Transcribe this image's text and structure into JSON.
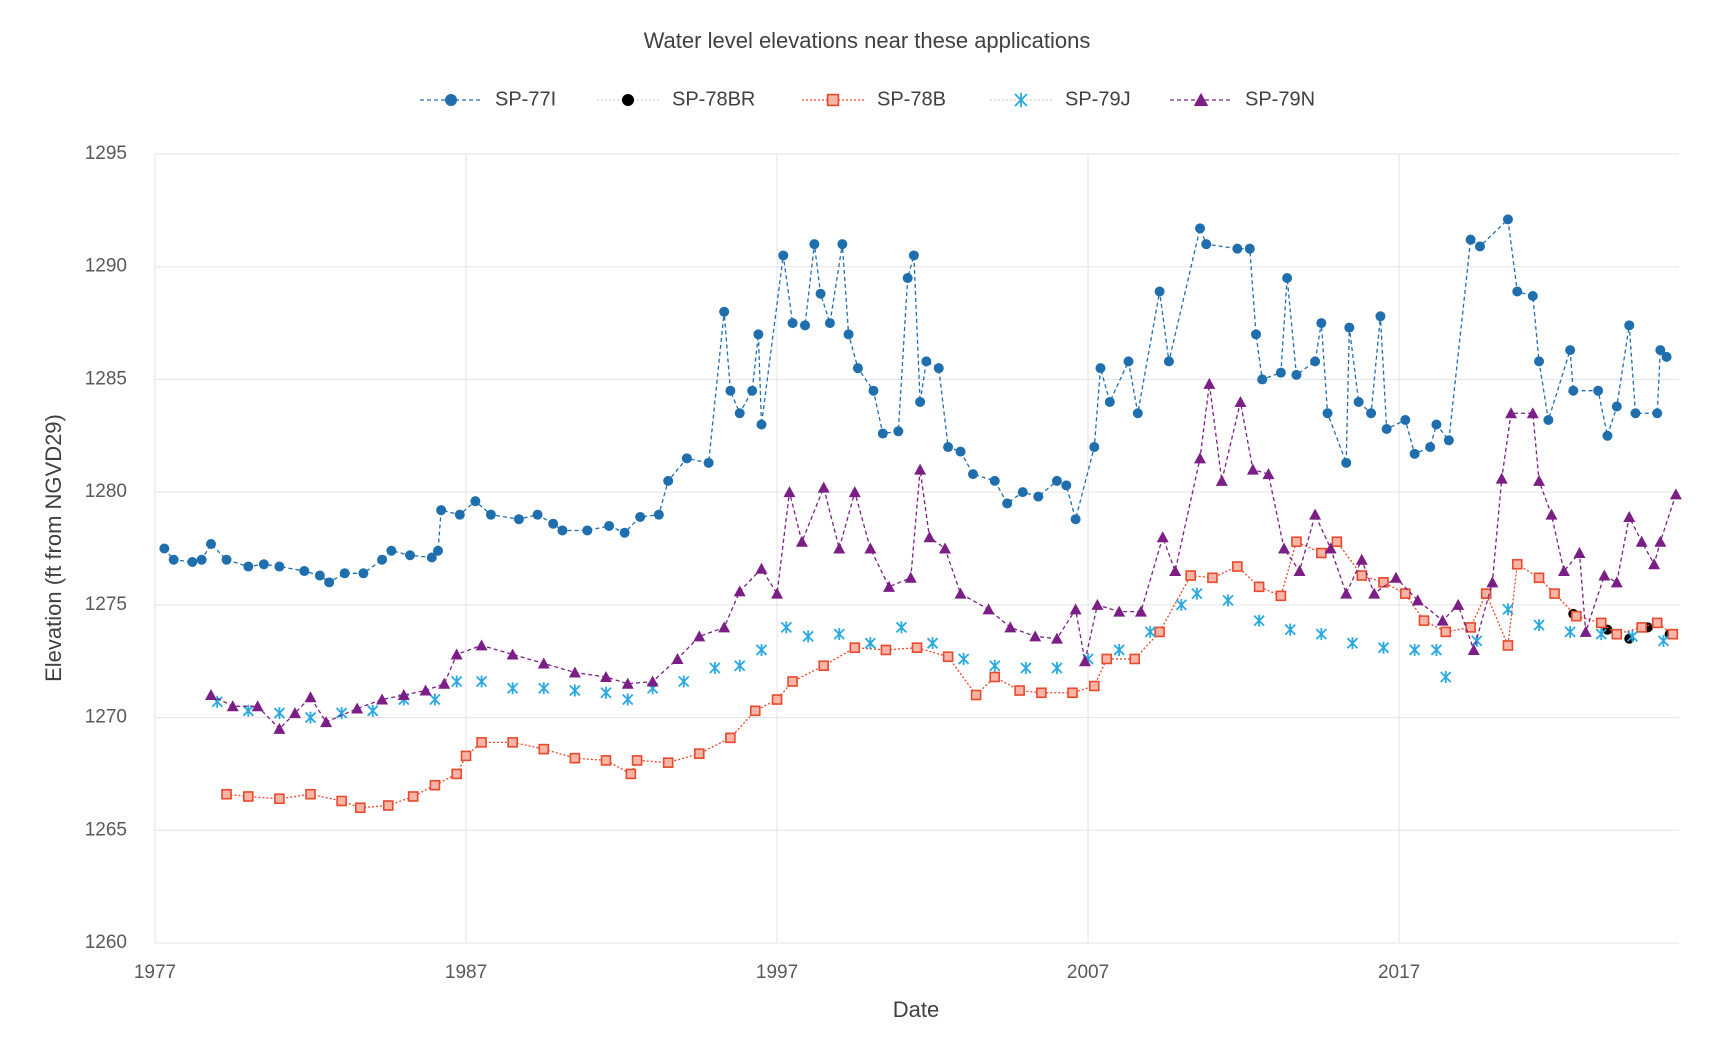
{
  "chart_data": {
    "type": "line",
    "title": "Water level elevations near these applications",
    "xlabel": "Date",
    "ylabel": "Elevation (ft from NGVD29)",
    "xlim": [
      1977,
      2026
    ],
    "xticks": [
      1977,
      1987,
      1997,
      2007,
      2017
    ],
    "ylim": [
      1260,
      1295
    ],
    "yticks": [
      1260,
      1265,
      1270,
      1275,
      1280,
      1285,
      1290,
      1295
    ],
    "grid": true,
    "legend": "top",
    "series": [
      {
        "name": "SP-77I",
        "color": "#1f6fae",
        "marker": "circle",
        "line": "dashed",
        "x": [
          1977.3,
          1977.6,
          1978.2,
          1978.5,
          1978.8,
          1979.3,
          1980.0,
          1980.5,
          1981.0,
          1981.8,
          1982.3,
          1982.6,
          1983.1,
          1983.7,
          1984.3,
          1984.6,
          1985.2,
          1985.9,
          1986.1,
          1986.2,
          1986.8,
          1987.3,
          1987.8,
          1988.7,
          1989.3,
          1989.8,
          1990.1,
          1990.9,
          1991.6,
          1992.1,
          1992.6,
          1993.2,
          1993.5,
          1994.1,
          1994.8,
          1995.3,
          1995.5,
          1995.8,
          1996.2,
          1996.4,
          1996.5,
          1997.2,
          1997.5,
          1997.9,
          1998.2,
          1998.4,
          1998.7,
          1999.1,
          1999.3,
          1999.6,
          2000.1,
          2000.4,
          2000.9,
          2001.2,
          2001.4,
          2001.6,
          2001.8,
          2002.2,
          2002.5,
          2002.9,
          2003.3,
          2004.0,
          2004.4,
          2004.9,
          2005.4,
          2006.0,
          2006.3,
          2006.6,
          2007.2,
          2007.4,
          2007.7,
          2008.3,
          2008.6,
          2009.3,
          2009.6,
          2010.6,
          2010.8,
          2011.8,
          2012.2,
          2012.4,
          2012.6,
          2013.2,
          2013.4,
          2013.7,
          2014.3,
          2014.5,
          2014.7,
          2015.3,
          2015.4,
          2015.7,
          2016.1,
          2016.4,
          2016.6,
          2017.2,
          2017.5,
          2018.0,
          2018.2,
          2018.6,
          2019.3,
          2019.6,
          2020.5,
          2020.8,
          2021.3,
          2021.5,
          2021.8,
          2022.5,
          2022.6,
          2023.4,
          2023.7,
          2024.0,
          2024.4,
          2024.6,
          2025.3,
          2025.4,
          2025.6
        ],
        "values": [
          1277.5,
          1277.0,
          1276.9,
          1277.0,
          1277.7,
          1277.0,
          1276.7,
          1276.8,
          1276.7,
          1276.5,
          1276.3,
          1276.0,
          1276.4,
          1276.4,
          1277.0,
          1277.4,
          1277.2,
          1277.1,
          1277.4,
          1279.2,
          1279.0,
          1279.6,
          1279.0,
          1278.8,
          1279.0,
          1278.6,
          1278.3,
          1278.3,
          1278.5,
          1278.2,
          1278.9,
          1279.0,
          1280.5,
          1281.5,
          1281.3,
          1288.0,
          1284.5,
          1283.5,
          1284.5,
          1287.0,
          1283.0,
          1290.5,
          1287.5,
          1287.4,
          1291.0,
          1288.8,
          1287.5,
          1291.0,
          1287.0,
          1285.5,
          1284.5,
          1282.6,
          1282.7,
          1289.5,
          1290.5,
          1284.0,
          1285.8,
          1285.5,
          1282.0,
          1281.8,
          1280.8,
          1280.5,
          1279.5,
          1280.0,
          1279.8,
          1280.5,
          1280.3,
          1278.8,
          1282.0,
          1285.5,
          1284.0,
          1285.8,
          1283.5,
          1288.9,
          1285.8,
          1291.7,
          1291.0,
          1290.8,
          1290.8,
          1287.0,
          1285.0,
          1285.3,
          1289.5,
          1285.2,
          1285.8,
          1287.5,
          1283.5,
          1281.3,
          1287.3,
          1284.0,
          1283.5,
          1287.8,
          1282.8,
          1283.2,
          1281.7,
          1282.0,
          1283.0,
          1282.3,
          1291.2,
          1290.9,
          1292.1,
          1288.9,
          1288.7,
          1285.8,
          1283.2,
          1286.3,
          1284.5,
          1284.5,
          1282.5,
          1283.8,
          1287.4,
          1283.5,
          1283.5,
          1286.3,
          1286.0
        ]
      },
      {
        "name": "SP-78BR",
        "color": "#000000",
        "marker": "circle",
        "line": "none",
        "x": [
          2022.6,
          2023.7,
          2024.4,
          2025.0,
          2025.7
        ],
        "values": [
          1274.6,
          1273.9,
          1273.5,
          1274.0,
          1273.7
        ]
      },
      {
        "name": "SP-78B",
        "color": "#e8482c",
        "marker": "square",
        "line": "dotted",
        "x": [
          1979.3,
          1980.0,
          1981.0,
          1982.0,
          1983.0,
          1983.6,
          1984.5,
          1985.3,
          1986.0,
          1986.7,
          1987.0,
          1987.5,
          1988.5,
          1989.5,
          1990.5,
          1991.5,
          1992.3,
          1992.5,
          1993.5,
          1994.5,
          1995.5,
          1996.3,
          1997.0,
          1997.5,
          1998.5,
          1999.5,
          2000.5,
          2001.5,
          2002.5,
          2003.4,
          2004.0,
          2004.8,
          2005.5,
          2006.5,
          2007.2,
          2007.6,
          2008.5,
          2009.3,
          2010.3,
          2011.0,
          2011.8,
          2012.5,
          2013.2,
          2013.7,
          2014.5,
          2015.0,
          2015.8,
          2016.5,
          2017.2,
          2017.8,
          2018.5,
          2019.3,
          2019.8,
          2020.5,
          2020.8,
          2021.5,
          2022.0,
          2022.7,
          2023.5,
          2024.0,
          2024.8,
          2025.3,
          2025.8
        ],
        "values": [
          1266.6,
          1266.5,
          1266.4,
          1266.6,
          1266.3,
          1266.0,
          1266.1,
          1266.5,
          1267.0,
          1267.5,
          1268.3,
          1268.9,
          1268.9,
          1268.6,
          1268.2,
          1268.1,
          1267.5,
          1268.1,
          1268.0,
          1268.4,
          1269.1,
          1270.3,
          1270.8,
          1271.6,
          1272.3,
          1273.1,
          1273.0,
          1273.1,
          1272.7,
          1271.0,
          1271.8,
          1271.2,
          1271.1,
          1271.1,
          1271.4,
          1272.6,
          1272.6,
          1273.8,
          1276.3,
          1276.2,
          1276.7,
          1275.8,
          1275.4,
          1277.8,
          1277.3,
          1277.8,
          1276.3,
          1276.0,
          1275.5,
          1274.3,
          1273.8,
          1274.0,
          1275.5,
          1273.2,
          1276.8,
          1276.2,
          1275.5,
          1274.5,
          1274.2,
          1273.7,
          1274.0,
          1274.2,
          1273.7
        ]
      },
      {
        "name": "SP-79J",
        "color": "#29a9e1",
        "marker": "x",
        "line": "none",
        "x": [
          1979.0,
          1980.0,
          1981.0,
          1982.0,
          1983.0,
          1984.0,
          1985.0,
          1986.0,
          1986.7,
          1987.5,
          1988.5,
          1989.5,
          1990.5,
          1991.5,
          1992.2,
          1993.0,
          1994.0,
          1995.0,
          1995.8,
          1996.5,
          1997.3,
          1998.0,
          1999.0,
          2000.0,
          2001.0,
          2002.0,
          2003.0,
          2004.0,
          2005.0,
          2006.0,
          2007.0,
          2008.0,
          2009.0,
          2010.0,
          2010.5,
          2011.5,
          2012.5,
          2013.5,
          2014.5,
          2015.5,
          2016.5,
          2017.5,
          2018.2,
          2018.5,
          2019.5,
          2020.5,
          2021.5,
          2022.5,
          2023.5,
          2024.5,
          2025.5
        ],
        "values": [
          1270.7,
          1270.3,
          1270.2,
          1270.0,
          1270.2,
          1270.3,
          1270.8,
          1270.8,
          1271.6,
          1271.6,
          1271.3,
          1271.3,
          1271.2,
          1271.1,
          1270.8,
          1271.3,
          1271.6,
          1272.2,
          1272.3,
          1273.0,
          1274.0,
          1273.6,
          1273.7,
          1273.3,
          1274.0,
          1273.3,
          1272.6,
          1272.3,
          1272.2,
          1272.2,
          1272.6,
          1273.0,
          1273.8,
          1275.0,
          1275.5,
          1275.2,
          1274.3,
          1273.9,
          1273.7,
          1273.3,
          1273.1,
          1273.0,
          1273.0,
          1271.8,
          1273.4,
          1274.8,
          1274.1,
          1273.8,
          1273.7,
          1273.6,
          1273.4
        ]
      },
      {
        "name": "SP-79N",
        "color": "#7b1f86",
        "marker": "triangle",
        "line": "dashed",
        "x": [
          1978.8,
          1979.5,
          1980.3,
          1981.0,
          1981.5,
          1982.0,
          1982.5,
          1983.5,
          1984.3,
          1985.0,
          1985.7,
          1986.3,
          1986.7,
          1987.5,
          1988.5,
          1989.5,
          1990.5,
          1991.5,
          1992.2,
          1993.0,
          1993.8,
          1994.5,
          1995.3,
          1995.8,
          1996.5,
          1997.0,
          1997.4,
          1997.8,
          1998.5,
          1999.0,
          1999.5,
          2000.0,
          2000.6,
          2001.3,
          2001.6,
          2001.9,
          2002.4,
          2002.9,
          2003.8,
          2004.5,
          2005.3,
          2006.0,
          2006.6,
          2006.9,
          2007.3,
          2008.0,
          2008.7,
          2009.4,
          2009.8,
          2010.6,
          2010.9,
          2011.3,
          2011.9,
          2012.3,
          2012.8,
          2013.3,
          2013.8,
          2014.3,
          2014.8,
          2015.3,
          2015.8,
          2016.2,
          2016.9,
          2017.6,
          2018.4,
          2018.9,
          2019.4,
          2020.0,
          2020.3,
          2020.6,
          2021.3,
          2021.5,
          2021.9,
          2022.3,
          2022.8,
          2023.0,
          2023.6,
          2024.0,
          2024.4,
          2024.8,
          2025.2,
          2025.4,
          2025.9
        ],
        "values": [
          1271.0,
          1270.5,
          1270.5,
          1269.5,
          1270.2,
          1270.9,
          1269.8,
          1270.4,
          1270.8,
          1271.0,
          1271.2,
          1271.5,
          1272.8,
          1273.2,
          1272.8,
          1272.4,
          1272.0,
          1271.8,
          1271.5,
          1271.6,
          1272.6,
          1273.6,
          1274.0,
          1275.6,
          1276.6,
          1275.5,
          1280.0,
          1277.8,
          1280.2,
          1277.5,
          1280.0,
          1277.5,
          1275.8,
          1276.2,
          1281.0,
          1278.0,
          1277.5,
          1275.5,
          1274.8,
          1274.0,
          1273.6,
          1273.5,
          1274.8,
          1272.5,
          1275.0,
          1274.7,
          1274.7,
          1278.0,
          1276.5,
          1281.5,
          1284.8,
          1280.5,
          1284.0,
          1281.0,
          1280.8,
          1277.5,
          1276.5,
          1279.0,
          1277.5,
          1275.5,
          1277.0,
          1275.5,
          1276.2,
          1275.2,
          1274.3,
          1275.0,
          1273.0,
          1276.0,
          1280.6,
          1283.5,
          1283.5,
          1280.5,
          1279.0,
          1276.5,
          1277.3,
          1273.8,
          1276.3,
          1276.0,
          1278.9,
          1277.8,
          1276.8,
          1277.8,
          1279.9
        ]
      }
    ]
  }
}
